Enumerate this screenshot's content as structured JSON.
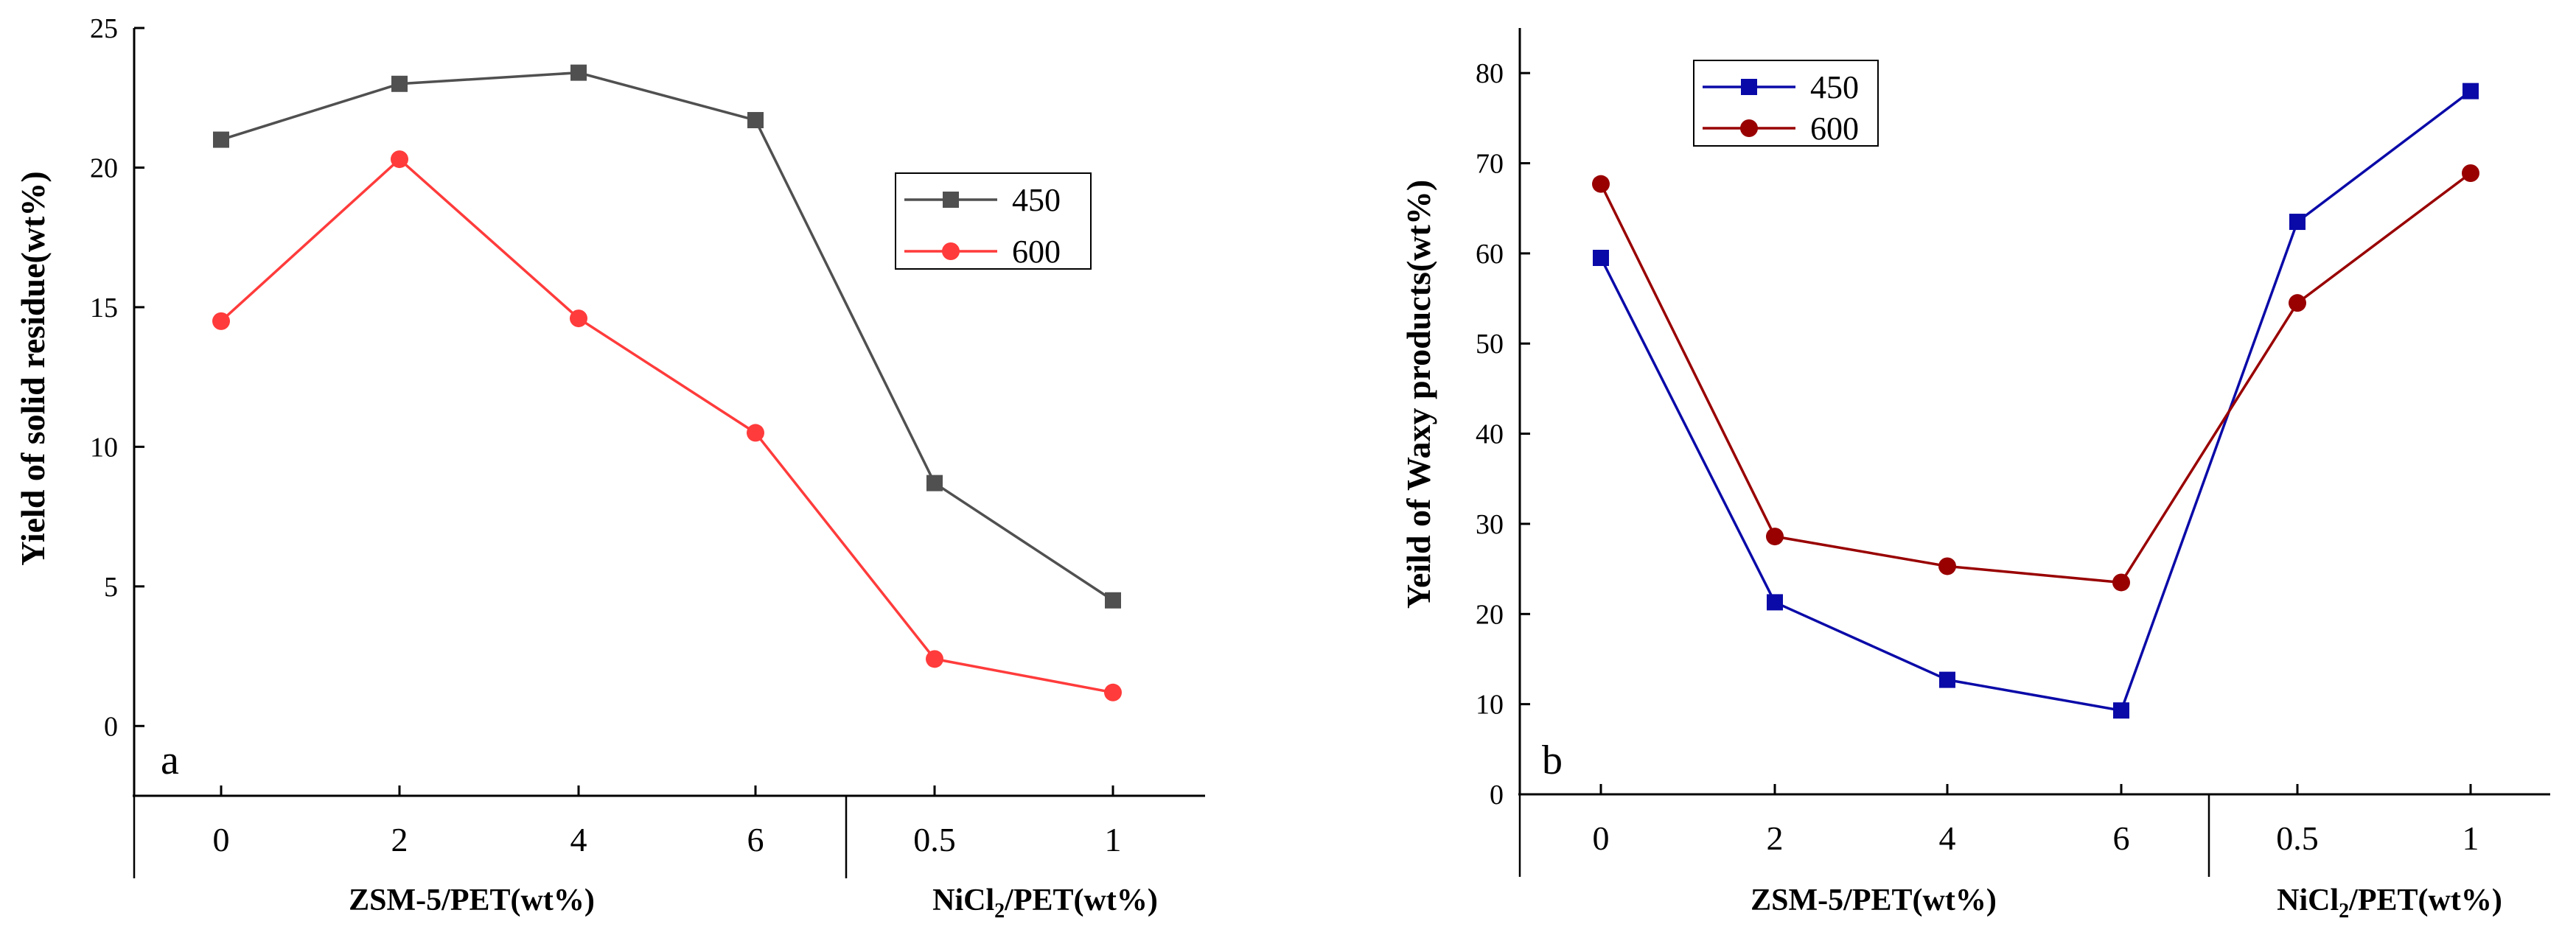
{
  "colors": {
    "axis": "#000000",
    "a450": "#505050",
    "a600": "#ff3b3b",
    "b450": "#0a0aa8",
    "b600": "#990000"
  },
  "chart_data": [
    {
      "type": "line",
      "panel_label": "a",
      "ylabel": "Yield of solid residue(wt%)",
      "xlabel_groups": [
        "ZSM-5/PET(wt%)",
        "NiCl2/PET(wt%)"
      ],
      "xlabel_group2_parts": {
        "pre": "NiCl",
        "sub": "2",
        "post": "/PET(wt%)"
      },
      "categories": [
        "0",
        "2",
        "4",
        "6",
        "0.5",
        "1"
      ],
      "ylim": [
        -2.5,
        25
      ],
      "yticks": [
        0,
        5,
        10,
        15,
        20,
        25
      ],
      "legend": {
        "position": "upper-right",
        "entries": [
          "450",
          "600"
        ]
      },
      "series": [
        {
          "name": "450",
          "marker": "square",
          "color_key": "a450",
          "values": [
            21.0,
            23.0,
            23.4,
            21.7,
            8.7,
            4.5
          ]
        },
        {
          "name": "600",
          "marker": "circle",
          "color_key": "a600",
          "values": [
            14.5,
            20.3,
            14.6,
            10.5,
            2.4,
            1.2
          ]
        }
      ]
    },
    {
      "type": "line",
      "panel_label": "b",
      "ylabel": "Yeild of Waxy products(wt%)",
      "xlabel_groups": [
        "ZSM-5/PET(wt%)",
        "NiCl2/PET(wt%)"
      ],
      "xlabel_group2_parts": {
        "pre": "NiCl",
        "sub": "2",
        "post": "/PET(wt%)"
      },
      "categories": [
        "0",
        "2",
        "4",
        "6",
        "0.5",
        "1"
      ],
      "ylim": [
        0,
        85
      ],
      "yticks": [
        0,
        10,
        20,
        30,
        40,
        50,
        60,
        70,
        80
      ],
      "legend": {
        "position": "upper-left",
        "entries": [
          "450",
          "600"
        ]
      },
      "series": [
        {
          "name": "450",
          "marker": "square",
          "color_key": "b450",
          "values": [
            59.5,
            21.3,
            12.7,
            9.3,
            63.5,
            78.0
          ]
        },
        {
          "name": "600",
          "marker": "circle",
          "color_key": "b600",
          "values": [
            67.7,
            28.6,
            25.3,
            23.5,
            54.5,
            68.9
          ]
        }
      ]
    }
  ]
}
